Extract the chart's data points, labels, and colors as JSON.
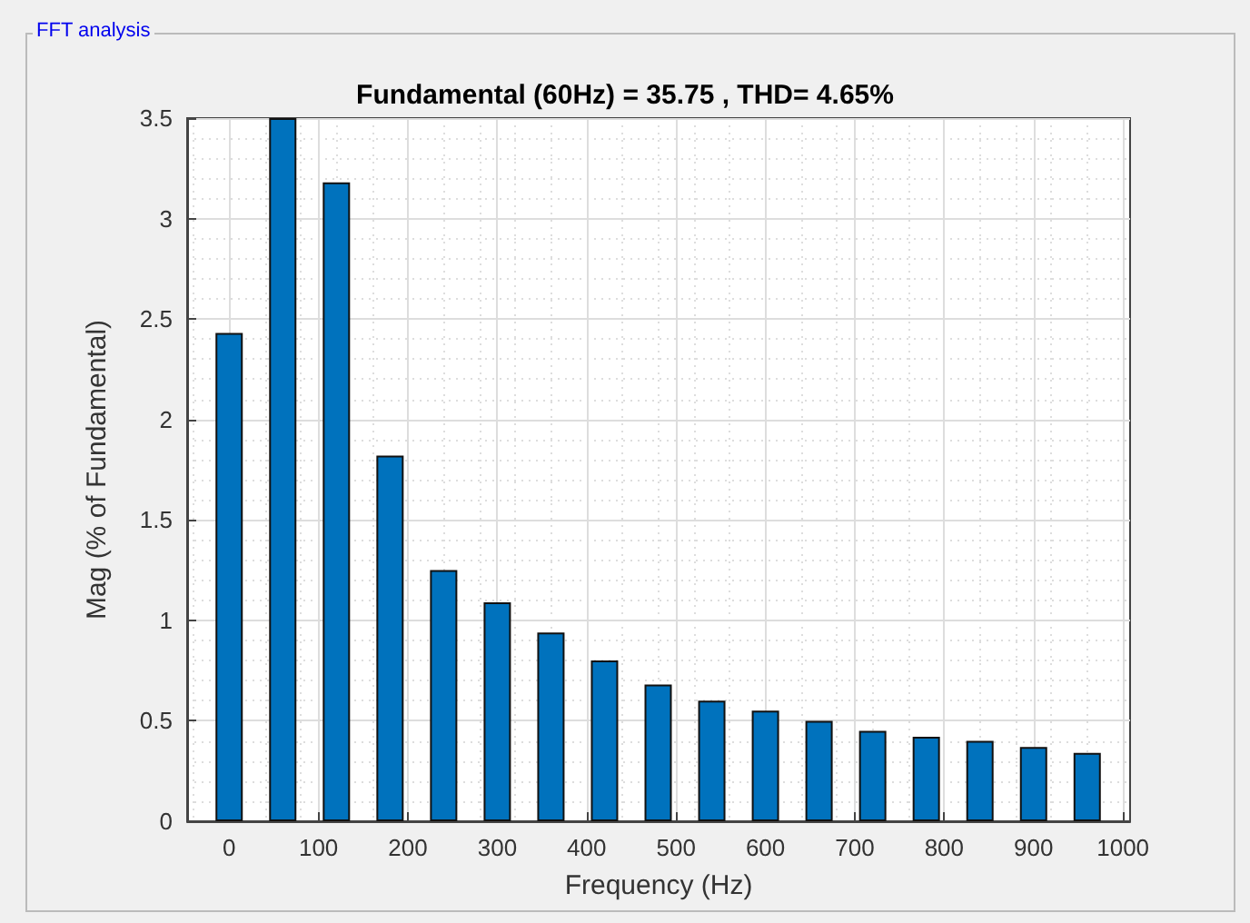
{
  "chart_data": {
    "type": "bar",
    "title": "Fundamental (60Hz) = 35.75 , THD= 4.65%",
    "xlabel": "Frequency (Hz)",
    "ylabel": "Mag (% of Fundamental)",
    "annotations": [
      "FFT analysis"
    ],
    "x": [
      0,
      60,
      120,
      180,
      240,
      300,
      360,
      420,
      480,
      540,
      600,
      660,
      720,
      780,
      840,
      900,
      960
    ],
    "values": [
      2.43,
      3.5,
      3.18,
      1.82,
      1.25,
      1.09,
      0.94,
      0.8,
      0.68,
      0.6,
      0.55,
      0.5,
      0.45,
      0.42,
      0.4,
      0.37,
      0.34
    ],
    "color": "#0072bd",
    "xlim": [
      -47,
      1008
    ],
    "xticks": [
      0,
      100,
      200,
      300,
      400,
      500,
      600,
      700,
      800,
      900,
      1000
    ],
    "ylim": [
      0,
      3.5
    ],
    "yticks": [
      0,
      0.5,
      1,
      1.5,
      2,
      2.5,
      3,
      3.5
    ],
    "grid": true
  }
}
